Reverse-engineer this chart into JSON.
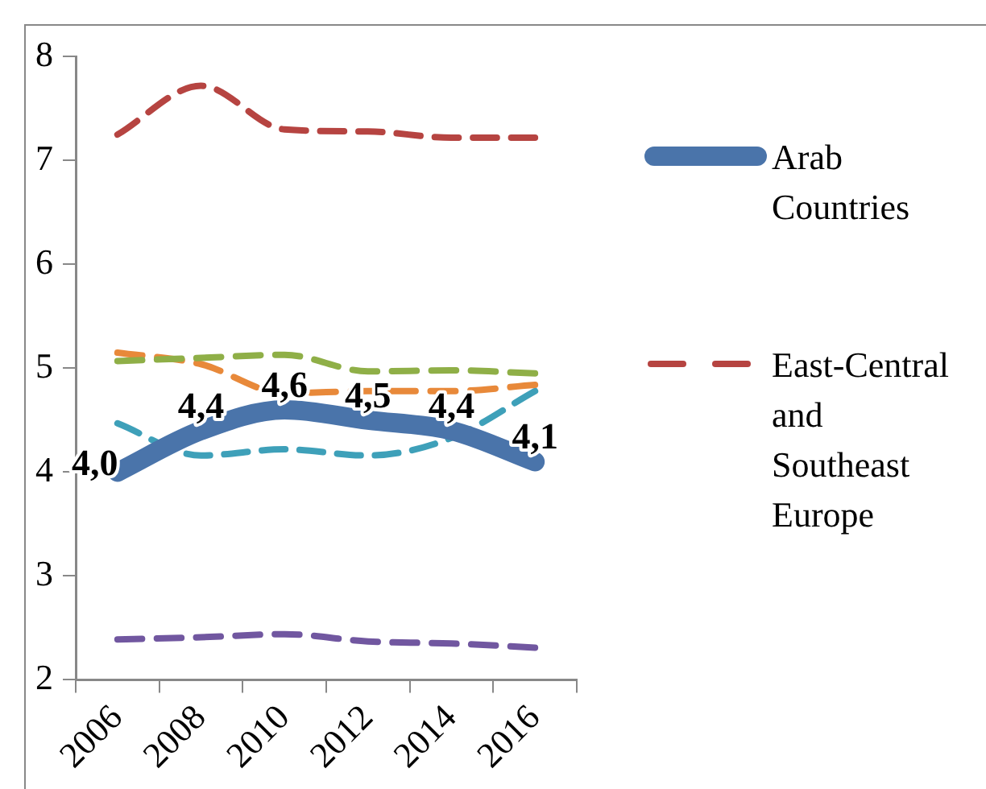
{
  "chart_data": {
    "type": "line",
    "categories": [
      "2006",
      "2008",
      "2010",
      "2012",
      "2014",
      "2016"
    ],
    "series": [
      {
        "name": "Arab Countries",
        "color": "#4a74aa",
        "line_style": "solid",
        "values": [
          4.0,
          4.4,
          4.6,
          4.5,
          4.4,
          4.1
        ],
        "value_labels": [
          "4,0",
          "4,4",
          "4,6",
          "4,5",
          "4,4",
          "4,1"
        ]
      },
      {
        "name": "East-Central and Southeast Europe",
        "color": "#b64441",
        "line_style": "dashed",
        "values": [
          7.25,
          7.72,
          7.3,
          7.28,
          7.22,
          7.22
        ]
      },
      {
        "color": "#8faf47",
        "line_style": "dashed",
        "values": [
          5.07,
          5.1,
          5.13,
          4.97,
          4.98,
          4.95
        ]
      },
      {
        "color": "#e8893a",
        "line_style": "dashed",
        "values": [
          5.15,
          5.04,
          4.76,
          4.78,
          4.78,
          4.84
        ]
      },
      {
        "color": "#3ea0b9",
        "line_style": "dashed",
        "values": [
          4.47,
          4.16,
          4.22,
          4.16,
          4.33,
          4.78
        ]
      },
      {
        "color": "#7157a0",
        "line_style": "dashed",
        "values": [
          2.39,
          2.41,
          2.44,
          2.37,
          2.35,
          2.31
        ]
      }
    ],
    "ylim": [
      2,
      8
    ],
    "yticks": [
      2,
      3,
      4,
      5,
      6,
      7,
      8
    ],
    "grid": false,
    "legend": "right",
    "marker": "none"
  }
}
